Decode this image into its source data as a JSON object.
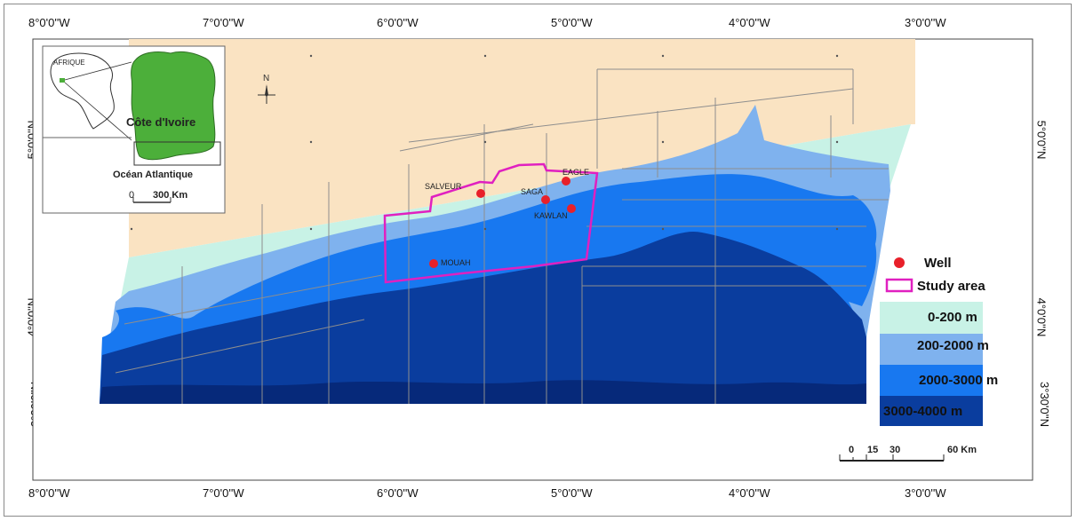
{
  "coordinates": {
    "top": [
      "8°0'0''W",
      "7°0'0''W",
      "6°0'0''W",
      "5°0'0''W",
      "4°0'0''W",
      "3°0'0''W"
    ],
    "bottom": [
      "8°0'0''W",
      "7°0'0''W",
      "6°0'0''W",
      "5°0'0''W",
      "4°0'0''W",
      "3°0'0''W"
    ],
    "left": [
      "5°0'0''N",
      "4°0'0''N",
      "3°30'0''N"
    ],
    "right": [
      "5°0'0''N",
      "4°0'0''N",
      "3°30'0''N"
    ]
  },
  "north_arrow": {
    "label": "N"
  },
  "inset": {
    "continent_label": "AFRIQUE",
    "country_label": "Côte d'Ivoire",
    "ocean_label": "Océan Atlantique",
    "scale_start": "0",
    "scale_end": "300 Km"
  },
  "wells": [
    {
      "name": "SALVEUR"
    },
    {
      "name": "EAGLE"
    },
    {
      "name": "SAGA"
    },
    {
      "name": "KAWLAN"
    },
    {
      "name": "MOUAH"
    }
  ],
  "legend": {
    "well": "Well",
    "study_area": "Study area",
    "classes": [
      {
        "label": "0-200 m",
        "color": "#c8f2e6"
      },
      {
        "label": "200-2000 m",
        "color": "#7fb2ee"
      },
      {
        "label": "2000-3000 m",
        "color": "#1878f0"
      },
      {
        "label": "3000-4000 m",
        "color": "#0a3d9e"
      }
    ]
  },
  "scale_bar": {
    "ticks": [
      "0",
      "15",
      "30",
      "60 Km"
    ]
  },
  "colors": {
    "land": "#fae3c2",
    "deep": "#06297a",
    "well": "#e8202a",
    "study_area": "#e020c0"
  }
}
